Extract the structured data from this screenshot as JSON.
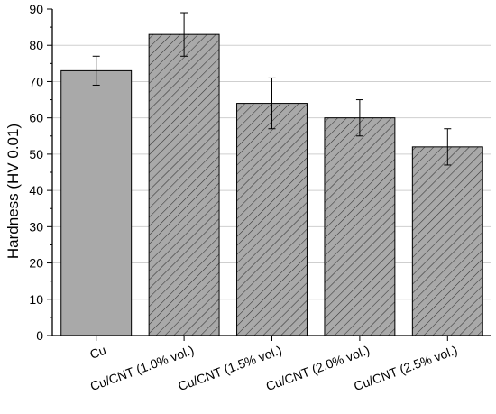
{
  "chart_data": {
    "type": "bar",
    "title": "",
    "xlabel": "",
    "ylabel": "Hardness (HV 0.01)",
    "ylim": [
      0,
      90
    ],
    "yticks": [
      0,
      10,
      20,
      30,
      40,
      50,
      60,
      70,
      80,
      90
    ],
    "grid": true,
    "categories": [
      "Cu",
      "Cu/CNT (1.0% vol.)",
      "Cu/CNT (1.5% vol.)",
      "Cu/CNT (2.0% vol.)",
      "Cu/CNT (2.5% vol.)"
    ],
    "values": [
      73,
      83,
      64,
      60,
      52
    ],
    "error_low": [
      69,
      77,
      57,
      55,
      47
    ],
    "error_high": [
      77,
      89,
      71,
      65,
      57
    ],
    "fills": [
      "solid",
      "hatched",
      "hatched",
      "hatched",
      "hatched"
    ],
    "colors": {
      "bar": "#a9a9a9",
      "hatch": "#333333",
      "grid": "#cfcfcf",
      "axis": "#000000"
    }
  }
}
